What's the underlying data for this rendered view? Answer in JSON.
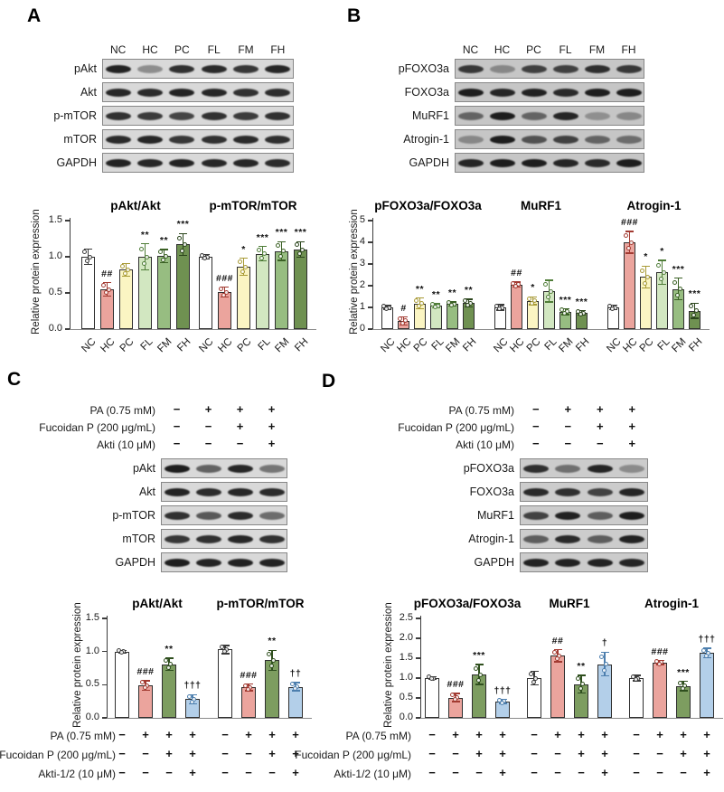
{
  "panel_labels": {
    "a": "A",
    "b": "B",
    "c": "C",
    "d": "D"
  },
  "blots": [
    {
      "panel": "A",
      "lane_labels": [
        "NC",
        "HC",
        "PC",
        "FL",
        "FM",
        "FH"
      ],
      "rows": [
        {
          "label": "pAkt",
          "bands": [
            0.92,
            0.38,
            0.85,
            0.88,
            0.82,
            0.9
          ]
        },
        {
          "label": "Akt",
          "bands": [
            0.9,
            0.88,
            0.92,
            0.9,
            0.85,
            0.87
          ]
        },
        {
          "label": "p-mTOR",
          "bands": [
            0.85,
            0.8,
            0.75,
            0.85,
            0.8,
            0.85
          ]
        },
        {
          "label": "mTOR",
          "bands": [
            0.88,
            0.9,
            0.82,
            0.85,
            0.88,
            0.86
          ]
        },
        {
          "label": "GAPDH",
          "bands": [
            0.92,
            0.9,
            0.92,
            0.9,
            0.9,
            0.88
          ]
        }
      ]
    },
    {
      "panel": "B",
      "lane_labels": [
        "NC",
        "HC",
        "PC",
        "FL",
        "FM",
        "FH"
      ],
      "rows": [
        {
          "label": "pFOXO3a",
          "bands": [
            0.8,
            0.35,
            0.75,
            0.75,
            0.85,
            0.8
          ]
        },
        {
          "label": "FOXO3a",
          "bands": [
            0.95,
            0.9,
            0.92,
            0.88,
            0.95,
            0.95
          ]
        },
        {
          "label": "MuRF1",
          "bands": [
            0.55,
            0.95,
            0.55,
            0.9,
            0.3,
            0.35
          ]
        },
        {
          "label": "Atrogin-1",
          "bands": [
            0.35,
            0.95,
            0.65,
            0.75,
            0.55,
            0.5
          ]
        },
        {
          "label": "GAPDH",
          "bands": [
            0.9,
            0.95,
            0.95,
            0.9,
            0.88,
            0.95
          ]
        }
      ]
    },
    {
      "panel": "C",
      "treatments": [
        {
          "label": "PA (0.75 mM)",
          "signs": [
            "−",
            "+",
            "+",
            "+"
          ]
        },
        {
          "label": "Fucoidan P (200 μg/mL)",
          "signs": [
            "−",
            "−",
            "+",
            "+"
          ]
        },
        {
          "label": "Akti (10 μM)",
          "signs": [
            "−",
            "−",
            "−",
            "+"
          ]
        }
      ],
      "rows": [
        {
          "label": "pAkt",
          "bands": [
            0.95,
            0.6,
            0.9,
            0.5
          ]
        },
        {
          "label": "Akt",
          "bands": [
            0.92,
            0.88,
            0.9,
            0.88
          ]
        },
        {
          "label": "p-mTOR",
          "bands": [
            0.85,
            0.65,
            0.88,
            0.55
          ]
        },
        {
          "label": "mTOR",
          "bands": [
            0.82,
            0.85,
            0.9,
            0.85
          ]
        },
        {
          "label": "GAPDH",
          "bands": [
            0.95,
            0.92,
            0.93,
            0.92
          ]
        }
      ]
    },
    {
      "panel": "D",
      "treatments": [
        {
          "label": "PA (0.75 mM)",
          "signs": [
            "−",
            "+",
            "+",
            "+"
          ]
        },
        {
          "label": "Fucoidan P (200 μg/mL)",
          "signs": [
            "−",
            "−",
            "+",
            "+"
          ]
        },
        {
          "label": "Akti (10 μM)",
          "signs": [
            "−",
            "−",
            "−",
            "+"
          ]
        }
      ],
      "rows": [
        {
          "label": "pFOXO3a",
          "bands": [
            0.85,
            0.5,
            0.9,
            0.35
          ]
        },
        {
          "label": "FOXO3a",
          "bands": [
            0.88,
            0.85,
            0.75,
            0.9
          ]
        },
        {
          "label": "MuRF1",
          "bands": [
            0.75,
            0.92,
            0.6,
            0.95
          ]
        },
        {
          "label": "Atrogin-1",
          "bands": [
            0.6,
            0.88,
            0.6,
            0.92
          ]
        },
        {
          "label": "GAPDH",
          "bands": [
            0.92,
            0.92,
            0.92,
            0.9
          ]
        }
      ]
    }
  ],
  "chart_data": [
    {
      "id": "A",
      "panel": "A",
      "type": "bar",
      "ylabel": "Relative protein expression",
      "ylim": [
        0,
        1.5
      ],
      "yticks": [
        0,
        0.5,
        1.0,
        1.5
      ],
      "ytick_labels": [
        "0.0",
        "0.5",
        "1.0",
        "1.5"
      ],
      "categories": [
        "NC",
        "HC",
        "PC",
        "FL",
        "FM",
        "FH"
      ],
      "colors": [
        "#ffffff",
        "#eba49d",
        "#fbf5c3",
        "#d2e7c1",
        "#97bd81",
        "#6f9151"
      ],
      "edge_colors": [
        "#3a3a3a",
        "#a23a31",
        "#a89a35",
        "#4f7d38",
        "#3a6024",
        "#2b451c"
      ],
      "groups": [
        {
          "title": "pAkt/Akt",
          "values": [
            1.0,
            0.55,
            0.82,
            1.0,
            1.01,
            1.17
          ],
          "errors": [
            0.11,
            0.09,
            0.09,
            0.18,
            0.09,
            0.15
          ],
          "sig": [
            "",
            "##",
            "",
            "**",
            "**",
            "***"
          ]
        },
        {
          "title": "p-mTOR/mTOR",
          "values": [
            1.0,
            0.51,
            0.86,
            1.04,
            1.08,
            1.1
          ],
          "errors": [
            0.03,
            0.07,
            0.12,
            0.1,
            0.13,
            0.11
          ],
          "sig": [
            "",
            "###",
            "*",
            "***",
            "***",
            "***"
          ]
        }
      ]
    },
    {
      "id": "B",
      "panel": "B",
      "type": "bar",
      "ylabel": "Relative protein expression",
      "ylim": [
        0,
        5
      ],
      "yticks": [
        0,
        1,
        2,
        3,
        4,
        5
      ],
      "ytick_labels": [
        "0",
        "1",
        "2",
        "3",
        "4",
        "5"
      ],
      "categories": [
        "NC",
        "HC",
        "PC",
        "FL",
        "FM",
        "FH"
      ],
      "colors": [
        "#ffffff",
        "#eba49d",
        "#fbf5c3",
        "#d2e7c1",
        "#97bd81",
        "#6f9151"
      ],
      "edge_colors": [
        "#3a3a3a",
        "#a23a31",
        "#a89a35",
        "#4f7d38",
        "#3a6024",
        "#2b451c"
      ],
      "groups": [
        {
          "title": "pFOXO3a/FOXO3a",
          "values": [
            1.0,
            0.38,
            1.18,
            1.07,
            1.15,
            1.2
          ],
          "errors": [
            0.08,
            0.18,
            0.25,
            0.1,
            0.1,
            0.18
          ],
          "sig": [
            "",
            "#",
            "**",
            "**",
            "**",
            "**"
          ]
        },
        {
          "title": "MuRF1",
          "values": [
            1.0,
            2.05,
            1.3,
            1.75,
            0.8,
            0.75
          ],
          "errors": [
            0.13,
            0.12,
            0.18,
            0.5,
            0.13,
            0.1
          ],
          "sig": [
            "",
            "##",
            "*",
            "",
            "***",
            "***"
          ]
        },
        {
          "title": "Atrogin-1",
          "values": [
            1.0,
            4.0,
            2.4,
            2.62,
            1.85,
            0.85
          ],
          "errors": [
            0.1,
            0.5,
            0.5,
            0.55,
            0.5,
            0.35
          ],
          "sig": [
            "",
            "###",
            "*",
            "*",
            "***",
            "***"
          ]
        }
      ]
    },
    {
      "id": "C",
      "panel": "C",
      "type": "bar",
      "ylabel": "Relative protein expression",
      "ylim": [
        0,
        1.5
      ],
      "yticks": [
        0,
        0.5,
        1.0,
        1.5
      ],
      "ytick_labels": [
        "0.0",
        "0.5",
        "1.0",
        "1.5"
      ],
      "colors": [
        "#ffffff",
        "#eba49d",
        "#7d9d60",
        "#b3cfe9"
      ],
      "edge_colors": [
        "#3a3a3a",
        "#a23a31",
        "#2f4f1e",
        "#4d7fae"
      ],
      "treatments": [
        {
          "label": "PA (0.75 mM)",
          "signs": [
            "−",
            "+",
            "+",
            "+"
          ]
        },
        {
          "label": "Fucoidan P (200 μg/mL)",
          "signs": [
            "−",
            "−",
            "+",
            "+"
          ]
        },
        {
          "label": "Akti-1/2 (10 μM)",
          "signs": [
            "−",
            "−",
            "−",
            "+"
          ]
        }
      ],
      "groups": [
        {
          "title": "pAkt/Akt",
          "values": [
            1.0,
            0.49,
            0.81,
            0.28
          ],
          "errors": [
            0.02,
            0.07,
            0.09,
            0.07
          ],
          "sig": [
            "",
            "###",
            "**",
            "†††"
          ]
        },
        {
          "title": "p-mTOR/mTOR",
          "values": [
            1.03,
            0.46,
            0.87,
            0.47
          ],
          "errors": [
            0.06,
            0.05,
            0.15,
            0.06
          ],
          "sig": [
            "",
            "###",
            "**",
            "††"
          ]
        }
      ]
    },
    {
      "id": "D",
      "panel": "D",
      "type": "bar",
      "ylabel": "Relative protein expression",
      "ylim": [
        0,
        2.5
      ],
      "yticks": [
        0,
        0.5,
        1.0,
        1.5,
        2.0,
        2.5
      ],
      "ytick_labels": [
        "0.0",
        "0.5",
        "1.0",
        "1.5",
        "2.0",
        "2.5"
      ],
      "colors": [
        "#ffffff",
        "#eba49d",
        "#7d9d60",
        "#b3cfe9"
      ],
      "edge_colors": [
        "#3a3a3a",
        "#a23a31",
        "#2f4f1e",
        "#4d7fae"
      ],
      "treatments": [
        {
          "label": "PA (0.75 mM)",
          "signs": [
            "−",
            "+",
            "+",
            "+"
          ]
        },
        {
          "label": "Fucoidan P (200 μg/mL)",
          "signs": [
            "−",
            "−",
            "+",
            "+"
          ]
        },
        {
          "label": "Akti-1/2 (10 μM)",
          "signs": [
            "−",
            "−",
            "−",
            "+"
          ]
        }
      ],
      "groups": [
        {
          "title": "pFOXO3a/FOXO3a",
          "values": [
            1.0,
            0.51,
            1.09,
            0.41
          ],
          "errors": [
            0.04,
            0.1,
            0.25,
            0.05
          ],
          "sig": [
            "",
            "###",
            "***",
            "†††"
          ]
        },
        {
          "title": "MuRF1",
          "values": [
            1.0,
            1.56,
            0.85,
            1.35
          ],
          "errors": [
            0.17,
            0.15,
            0.22,
            0.3
          ],
          "sig": [
            "",
            "##",
            "**",
            "†"
          ]
        },
        {
          "title": "Atrogin-1",
          "values": [
            1.0,
            1.39,
            0.8,
            1.63
          ],
          "errors": [
            0.07,
            0.05,
            0.12,
            0.12
          ],
          "sig": [
            "",
            "###",
            "***",
            "†††"
          ]
        }
      ]
    }
  ]
}
